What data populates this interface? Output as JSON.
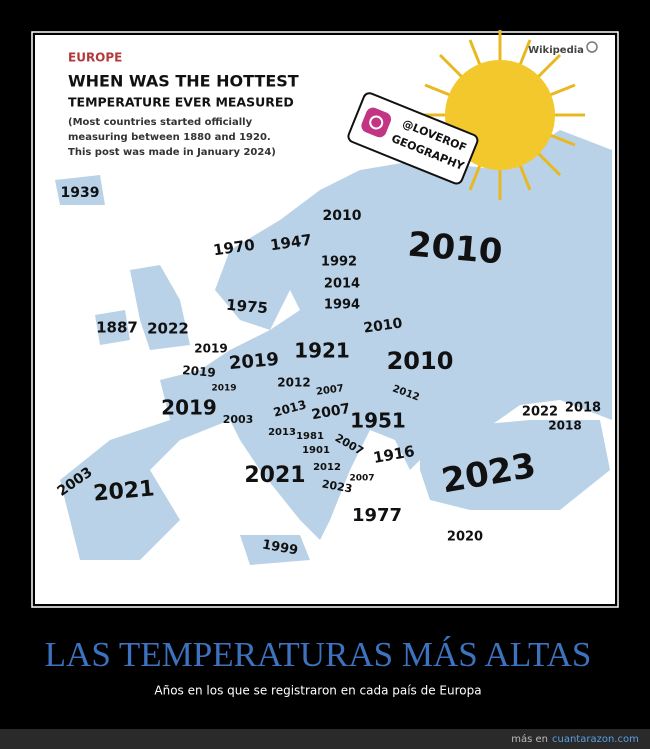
{
  "header": {
    "region": "EUROPE",
    "title_lines": [
      "WHEN WAS THE HOTTEST",
      "TEMPERATURE EVER MEASURED"
    ],
    "note_lines": [
      "(Most countries started officially",
      "measuring between 1880 and 1920.",
      "This post was made in January 2024)"
    ],
    "source": "Wikipedia"
  },
  "badge": {
    "lines": [
      "@LOVEROF",
      "GEOGRAPHY"
    ]
  },
  "map": {
    "labels": [
      "1939",
      "2010",
      "1970",
      "1947",
      "2010",
      "1992",
      "2014",
      "1975",
      "1994",
      "1887",
      "2022",
      "2010",
      "2019",
      "1921",
      "2019",
      "2010",
      "2019",
      "2019",
      "2012",
      "2007",
      "2012",
      "2019",
      "2013",
      "2007",
      "2003",
      "1951",
      "2022",
      "2018",
      "2018",
      "2013",
      "1981",
      "2007",
      "1901",
      "1916",
      "2012",
      "2021",
      "2007",
      "2023",
      "2023",
      "2003",
      "2021",
      "1977",
      "2020",
      "1999"
    ]
  },
  "caption": {
    "title": "LAS TEMPERATURAS MÁS ALTAS",
    "subtitle": "Años en los que se registraron en cada país de Europa"
  },
  "footer": {
    "prefix": "más en",
    "site": "cuantarazon.com"
  }
}
